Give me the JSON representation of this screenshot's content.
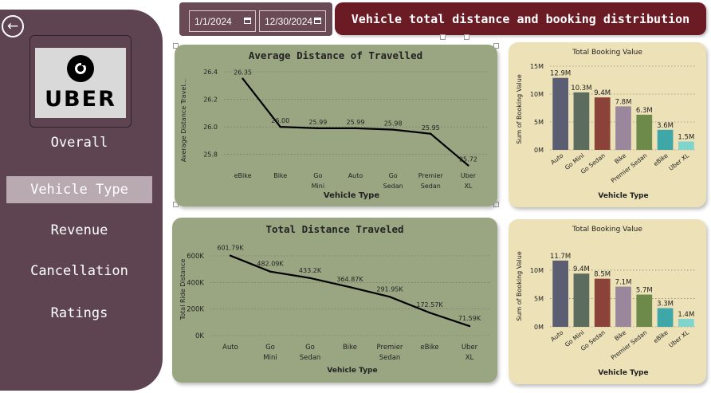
{
  "sidebar": {
    "back_icon": "arrow-left-icon",
    "logo_text": "UBER",
    "nav": [
      {
        "label": "Overall",
        "active": false
      },
      {
        "label": "Vehicle Type",
        "active": true
      },
      {
        "label": "Revenue",
        "active": false
      },
      {
        "label": "Cancellation",
        "active": false
      },
      {
        "label": "Ratings",
        "active": false
      }
    ]
  },
  "filters": {
    "start_date": "1/1/2024",
    "end_date": "12/30/2024",
    "calendar_icon": "calendar-icon"
  },
  "header": {
    "title": "Vehicle total distance and booking distribution"
  },
  "colors": {
    "sidebar": "#5e4450",
    "banner": "#6b1b24",
    "green_card": "#9aa682",
    "beige_card": "#ede1b7"
  },
  "chart_data": [
    {
      "id": "avg-distance",
      "type": "line",
      "title": "Average Distance of Travelled",
      "xlabel": "Vehicle Type",
      "ylabel": "Average Distance Travel...",
      "categories": [
        "eBike",
        "Bike",
        "Go Mini",
        "Auto",
        "Go Sedan",
        "Premier Sedan",
        "Uber XL"
      ],
      "values": [
        26.35,
        26.0,
        25.99,
        25.99,
        25.98,
        25.95,
        25.72
      ],
      "data_labels": [
        "26.35",
        "26.00",
        "25.99",
        "25.99",
        "25.98",
        "25.95",
        "25.72"
      ],
      "yticks": [
        "25.8",
        "26.0",
        "26.2",
        "26.4"
      ],
      "ylim": [
        25.7,
        26.4
      ]
    },
    {
      "id": "booking-value-1",
      "type": "bar",
      "title": "Total Booking Value",
      "xlabel": "Vehicle Type",
      "ylabel": "Sum of Booking Value",
      "categories": [
        "Auto",
        "Go Mini",
        "Go Sedan",
        "Bike",
        "Premier Sedan",
        "eBike",
        "Uber XL"
      ],
      "values": [
        12.9,
        10.3,
        9.4,
        7.8,
        6.3,
        3.6,
        1.5
      ],
      "data_labels": [
        "12.9M",
        "10.3M",
        "9.4M",
        "7.8M",
        "6.3M",
        "3.6M",
        "1.5M"
      ],
      "yticks": [
        "0M",
        "5M",
        "10M",
        "15M"
      ],
      "ylim": [
        0,
        15
      ],
      "colors": [
        "#5b5e73",
        "#5c6c5f",
        "#8b4339",
        "#9a879c",
        "#6e8a4a",
        "#3fa7a7",
        "#7fd4cc"
      ]
    },
    {
      "id": "total-distance",
      "type": "line",
      "title": "Total Distance Traveled",
      "xlabel": "Vehicle Type",
      "ylabel": "Total Ride Distance",
      "categories": [
        "Auto",
        "Go Mini",
        "Go Sedan",
        "Bike",
        "Premier Sedan",
        "eBike",
        "Uber XL"
      ],
      "values": [
        601.79,
        482.09,
        433.2,
        364.87,
        291.95,
        172.57,
        71.59
      ],
      "data_labels": [
        "601.79K",
        "482.09K",
        "433.2K",
        "364.87K",
        "291.95K",
        "172.57K",
        "71.59K"
      ],
      "yticks": [
        "0K",
        "200K",
        "400K",
        "600K"
      ],
      "ylim": [
        0,
        600
      ]
    },
    {
      "id": "booking-value-2",
      "type": "bar",
      "title": "Total Booking Value",
      "xlabel": "Vehicle Type",
      "ylabel": "Sum of Booking Value",
      "categories": [
        "Auto",
        "Go Mini",
        "Go Sedan",
        "Bike",
        "Premier Sedan",
        "eBike",
        "Uber XL"
      ],
      "values": [
        11.7,
        9.4,
        8.5,
        7.1,
        5.7,
        3.3,
        1.4
      ],
      "data_labels": [
        "11.7M",
        "9.4M",
        "8.5M",
        "7.1M",
        "5.7M",
        "3.3M",
        "1.4M"
      ],
      "yticks": [
        "0M",
        "5M",
        "10M"
      ],
      "ylim": [
        0,
        14.5
      ],
      "colors": [
        "#5b5e73",
        "#5c6c5f",
        "#8b4339",
        "#9a879c",
        "#6e8a4a",
        "#3fa7a7",
        "#7fd4cc"
      ]
    }
  ]
}
